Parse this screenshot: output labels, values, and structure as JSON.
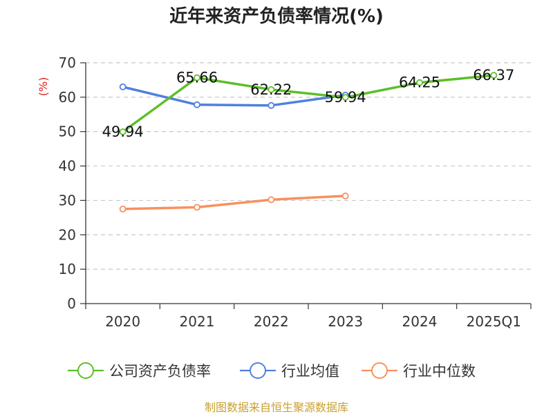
{
  "source": "制图数据来自恒生聚源数据库",
  "chart_data": {
    "type": "line",
    "title": "近年来资产负债率情况(%)",
    "xlabel": "",
    "ylabel": "(%)",
    "categories": [
      "2020",
      "2021",
      "2022",
      "2023",
      "2024",
      "2025Q1"
    ],
    "ylim": [
      0,
      70
    ],
    "yticks": [
      0,
      10,
      20,
      30,
      40,
      50,
      60,
      70
    ],
    "grid": true,
    "legend_position": "bottom",
    "series": [
      {
        "name": "公司资产负债率",
        "color": "#5cbf2a",
        "values": [
          49.94,
          65.66,
          62.22,
          59.94,
          64.25,
          66.37
        ],
        "data_labels": [
          "49.94",
          "65.66",
          "62.22",
          "59.94",
          "64.25",
          "66.37"
        ]
      },
      {
        "name": "行业均值",
        "color": "#4f7fe0",
        "values": [
          63.0,
          57.8,
          57.6,
          60.6,
          null,
          null
        ]
      },
      {
        "name": "行业中位数",
        "color": "#f7915e",
        "values": [
          27.5,
          28.0,
          30.2,
          31.3,
          null,
          null
        ]
      }
    ]
  }
}
